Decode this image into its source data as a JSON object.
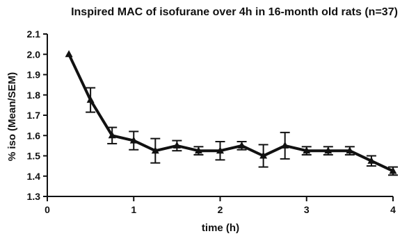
{
  "chart_data": {
    "type": "line",
    "title": "Inspired MAC of isofurane over 4h in 16-month old rats (n=37)",
    "xlabel": "time (h)",
    "ylabel": "% iso (Mean/SEM)",
    "xlim": [
      0,
      4
    ],
    "ylim": [
      1.3,
      2.1
    ],
    "x_ticks": [
      "0",
      "1",
      "2",
      "3",
      "4"
    ],
    "y_ticks": [
      "1.3",
      "1.4",
      "1.5",
      "1.6",
      "1.7",
      "1.8",
      "1.9",
      "2.0",
      "2.1"
    ],
    "grid": false,
    "marker": "triangle",
    "series": [
      {
        "x": [
          0.25,
          0.5,
          0.75,
          1.0,
          1.25,
          1.5,
          1.75,
          2.0,
          2.25,
          2.5,
          2.75,
          3.0,
          3.25,
          3.5,
          3.75,
          4.0
        ],
        "y": [
          2.0,
          1.775,
          1.6,
          1.575,
          1.525,
          1.55,
          1.525,
          1.525,
          1.55,
          1.5,
          1.55,
          1.525,
          1.525,
          1.525,
          1.475,
          1.425
        ],
        "sem": [
          0.0,
          0.06,
          0.04,
          0.045,
          0.06,
          0.025,
          0.02,
          0.045,
          0.02,
          0.055,
          0.065,
          0.02,
          0.02,
          0.02,
          0.025,
          0.02
        ]
      }
    ],
    "colors": {
      "line": "#111111",
      "axis": "#111111"
    }
  }
}
